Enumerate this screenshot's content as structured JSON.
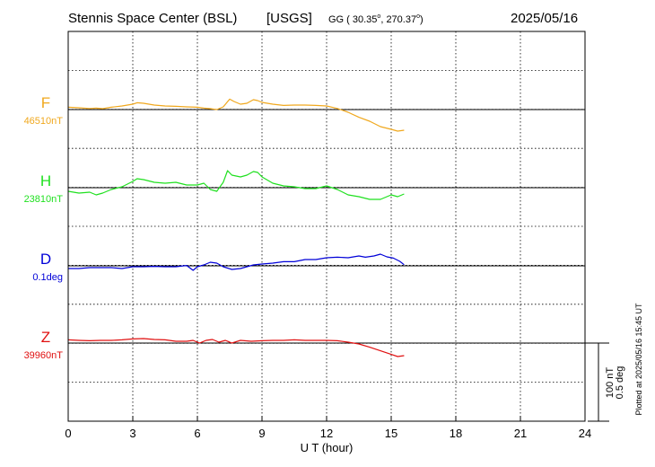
{
  "header": {
    "station": "Stennis Space Center (BSL)",
    "network": "[USGS]",
    "coords_prefix": "GG ( 30.35",
    "coords_lat_deg": "o",
    "coords_mid": ", 270.37",
    "coords_lon_deg": "o",
    "coords_suffix": ")",
    "date": "2025/05/16"
  },
  "footer": {
    "plotted_at": "Plotted at 2025/05/16 15:45 UT",
    "scale_nt": "100 nT",
    "scale_deg": "0.5 deg"
  },
  "colors": {
    "F": "#f0a81e",
    "H": "#1fe01f",
    "D": "#0000d8",
    "Z": "#e01010",
    "axis": "#000000"
  },
  "chart_data": {
    "type": "line",
    "title": "",
    "xlabel": "U T (hour)",
    "ylabel": "",
    "xlim": [
      0,
      24
    ],
    "xticks": [
      0,
      3,
      6,
      9,
      12,
      15,
      18,
      21,
      24
    ],
    "grid": true,
    "series": [
      {
        "name": "F",
        "baseline_label": "46510nT",
        "x": [
          0,
          0.5,
          1,
          1.3,
          1.6,
          2,
          2.5,
          3,
          3.2,
          3.5,
          4,
          4.5,
          5,
          5.5,
          6,
          6.3,
          6.6,
          6.9,
          7.2,
          7.5,
          7.7,
          8.0,
          8.3,
          8.6,
          8.8,
          9.0,
          9.5,
          10,
          10.5,
          11,
          11.5,
          12,
          12.5,
          13,
          13.5,
          14,
          14.5,
          15,
          15.3,
          15.6
        ],
        "y": [
          1.3,
          1.0,
          0.6,
          0.8,
          0.5,
          1.3,
          2.0,
          3.0,
          3.8,
          3.5,
          2.5,
          2.0,
          1.8,
          1.5,
          1.3,
          0.8,
          0.5,
          0.0,
          1.5,
          5.8,
          4.5,
          3.0,
          3.5,
          5.5,
          5.0,
          4.0,
          3.0,
          2.3,
          2.5,
          2.5,
          2.3,
          2.0,
          0.6,
          -1.5,
          -4.3,
          -6.5,
          -9.5,
          -11.0,
          -12.0,
          -11.5
        ]
      },
      {
        "name": "H",
        "baseline_label": "23810nT",
        "x": [
          0,
          0.5,
          1,
          1.3,
          1.6,
          2,
          2.5,
          3,
          3.2,
          3.5,
          4,
          4.5,
          5,
          5.5,
          6,
          6.3,
          6.6,
          6.9,
          7.2,
          7.4,
          7.6,
          8.0,
          8.3,
          8.6,
          8.8,
          9.0,
          9.5,
          10,
          10.5,
          11,
          11.5,
          12,
          12.5,
          13,
          13.5,
          14,
          14.5,
          15,
          15.3,
          15.6
        ],
        "y": [
          -2.0,
          -3.0,
          -2.5,
          -4.0,
          -3.0,
          -1.0,
          0.5,
          3.5,
          5.0,
          4.5,
          3.0,
          2.5,
          3.0,
          1.5,
          1.5,
          2.5,
          -1.0,
          -2.0,
          3.0,
          9.5,
          7.0,
          6.0,
          7.0,
          9.0,
          8.5,
          6.0,
          2.5,
          1.0,
          0.5,
          -0.5,
          -0.5,
          1.0,
          -1.0,
          -4.0,
          -5.0,
          -6.5,
          -6.5,
          -4.0,
          -5.0,
          -3.5
        ]
      },
      {
        "name": "D",
        "baseline_label": "0.1deg",
        "x": [
          0,
          0.5,
          1,
          1.5,
          2,
          2.5,
          3,
          3.5,
          4,
          4.5,
          5,
          5.5,
          5.8,
          6.0,
          6.3,
          6.6,
          6.9,
          7.2,
          7.6,
          8.0,
          8.3,
          8.6,
          9.0,
          9.5,
          10,
          10.5,
          11,
          11.5,
          12,
          12.5,
          13,
          13.5,
          13.8,
          14.2,
          14.5,
          14.8,
          15.1,
          15.4,
          15.6
        ],
        "y": [
          -1.5,
          -1.5,
          -1.0,
          -1.0,
          -1.0,
          -1.5,
          -0.5,
          -0.5,
          -0.3,
          -0.5,
          -0.5,
          0.2,
          -2.5,
          -0.5,
          0.5,
          2.0,
          1.5,
          -0.5,
          -2.0,
          -1.5,
          -0.5,
          0.5,
          1.0,
          1.5,
          2.3,
          2.3,
          3.5,
          3.5,
          4.5,
          4.8,
          4.5,
          5.5,
          4.8,
          5.5,
          6.5,
          5.0,
          4.3,
          2.5,
          0.6
        ]
      },
      {
        "name": "Z",
        "baseline_label": "39960nT",
        "x": [
          0,
          0.5,
          1,
          1.5,
          2,
          2.5,
          3,
          3.5,
          4,
          4.5,
          5,
          5.5,
          5.8,
          6.1,
          6.4,
          6.7,
          7.0,
          7.3,
          7.6,
          8.0,
          8.5,
          9.0,
          9.5,
          10,
          10.5,
          11,
          11.5,
          12,
          12.5,
          13,
          13.5,
          14,
          14.5,
          15,
          15.3,
          15.6
        ],
        "y": [
          1.8,
          1.5,
          1.3,
          1.5,
          1.5,
          1.8,
          2.3,
          2.5,
          2.0,
          1.8,
          1.0,
          1.0,
          1.5,
          0.0,
          1.5,
          2.0,
          0.5,
          1.5,
          0.0,
          1.5,
          1.0,
          1.3,
          1.5,
          1.5,
          1.8,
          1.5,
          1.5,
          1.5,
          1.3,
          0.5,
          -0.5,
          -2.3,
          -4.3,
          -6.3,
          -7.5,
          -7.0
        ]
      }
    ]
  }
}
